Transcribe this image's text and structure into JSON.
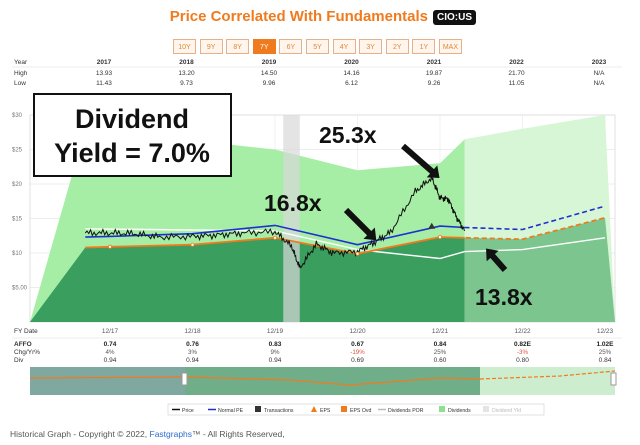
{
  "header": {
    "title": "Price Correlated With Fundamentals",
    "ticker": "CIO:US",
    "tabs": [
      "10Y",
      "9Y",
      "8Y",
      "7Y",
      "6Y",
      "5Y",
      "4Y",
      "3Y",
      "2Y",
      "1Y",
      "MAX"
    ],
    "active_tab": "7Y"
  },
  "range_table": {
    "labels": [
      "Year",
      "High",
      "Low"
    ],
    "years": [
      "2017",
      "2018",
      "2019",
      "2020",
      "2021",
      "2022",
      "2023"
    ],
    "high": [
      "13.93",
      "13.20",
      "14.50",
      "14.16",
      "19.87",
      "21.70",
      "N/A"
    ],
    "low": [
      "11.43",
      "9.73",
      "9.96",
      "6.12",
      "9.26",
      "11.05",
      "N/A"
    ]
  },
  "annotations": {
    "box_line1": "Dividend",
    "box_line2": "Yield = 7.0%",
    "peak": "25.3x",
    "mid": "16.8x",
    "current": "13.8x"
  },
  "fundamentals_table": {
    "row_labels": [
      "FY Date",
      "AFFO",
      "Chg/Yr%",
      "Div"
    ],
    "fy_dates": [
      "12/17",
      "12/18",
      "12/19",
      "12/20",
      "12/21",
      "12/22",
      "12/23"
    ],
    "affo": [
      "0.74",
      "0.76",
      "0.83",
      "0.67",
      "0.84",
      "0.82E",
      "1.02E"
    ],
    "chg": [
      "4%",
      "3%",
      "9%",
      "-19%",
      "25%",
      "-3%",
      "25%"
    ],
    "div": [
      "0.94",
      "0.94",
      "0.94",
      "0.69",
      "0.60",
      "0.80",
      "0.84"
    ]
  },
  "legend": {
    "items": [
      "Price",
      "Normal PE",
      "Transactions",
      "EPS",
      "EPS Ovd",
      "Dividends POR",
      "Dividends",
      "Dividend Yld"
    ]
  },
  "colors": {
    "price": "#111111",
    "normal_pe": "#1f2fd1",
    "eps": "#f07b1e",
    "transactions": "#333333",
    "dividends_por": "#ffffff",
    "dividends": "#8ee08c",
    "earnings_area": "#3a9e5e",
    "accent": "#f07b1e"
  },
  "footer": {
    "text": "Historical Graph - Copyright © 2022,",
    "link": "Fastgraphs",
    "tm": "™",
    "suffix": " - All Rights Reserved,"
  },
  "chart_data": {
    "type": "area",
    "title": "Price Correlated With Fundamentals",
    "ylim": [
      0,
      30
    ],
    "yticks": [
      "$30",
      "$25",
      "$20",
      "$15",
      "$10",
      "$5.00"
    ],
    "ytick_values": [
      30,
      25,
      20,
      15,
      10,
      5
    ],
    "x_range": [
      2017.0,
      2023.0
    ],
    "x_tick_labels": [
      "12/17",
      "12/18",
      "12/19",
      "12/20",
      "12/21",
      "12/22",
      "12/23"
    ],
    "x_tick_values": [
      2017.0,
      2018.0,
      2019.0,
      2020.0,
      2021.0,
      2022.0,
      2023.0
    ],
    "forecast_start": 2021.3,
    "shaded_band": [
      2019.1,
      2019.3
    ],
    "grid": true,
    "series": [
      {
        "name": "Dividends",
        "kind": "area",
        "x": [
          2016.7,
          2019.0,
          2020.0,
          2021.0,
          2021.3,
          2022.0,
          2023.0
        ],
        "values": [
          28.0,
          25.0,
          22.0,
          23.0,
          26.5,
          28.0,
          30.0
        ]
      },
      {
        "name": "Normal PE",
        "kind": "line",
        "x": [
          2016.7,
          2017.0,
          2018.0,
          2019.0,
          2020.0,
          2021.0,
          2021.3,
          2022.0,
          2023.0
        ],
        "values": [
          12.3,
          12.4,
          12.8,
          14.0,
          11.2,
          13.9,
          13.7,
          13.4,
          16.8
        ]
      },
      {
        "name": "EPS",
        "kind": "line",
        "x": [
          2016.7,
          2017.0,
          2018.0,
          2019.0,
          2020.0,
          2021.0,
          2021.3,
          2022.0,
          2023.0
        ],
        "values": [
          10.8,
          10.9,
          11.2,
          12.2,
          9.9,
          12.3,
          12.2,
          12.0,
          15.1
        ]
      },
      {
        "name": "Dividends POR",
        "kind": "line",
        "x": [
          2016.7,
          2019.0,
          2020.0,
          2021.0,
          2021.3,
          2022.0,
          2023.0
        ],
        "values": [
          13.5,
          13.2,
          10.5,
          9.2,
          10.2,
          10.5,
          12.2
        ]
      },
      {
        "name": "Price",
        "kind": "line",
        "x": [
          2016.7,
          2017.0,
          2017.3,
          2017.6,
          2018.0,
          2018.3,
          2018.6,
          2019.0,
          2019.2,
          2019.3,
          2019.5,
          2019.7,
          2020.0,
          2020.2,
          2020.4,
          2020.7,
          2020.9,
          2021.0,
          2021.1,
          2021.2,
          2021.3
        ],
        "values": [
          12.9,
          12.9,
          12.8,
          12.3,
          12.4,
          12.6,
          12.9,
          13.1,
          11.0,
          7.8,
          11.3,
          10.0,
          10.2,
          11.5,
          13.0,
          18.9,
          20.9,
          18.0,
          17.8,
          15.2,
          13.2
        ]
      }
    ],
    "transactions": [
      {
        "x": 2020.9,
        "y": 13.8
      }
    ]
  }
}
